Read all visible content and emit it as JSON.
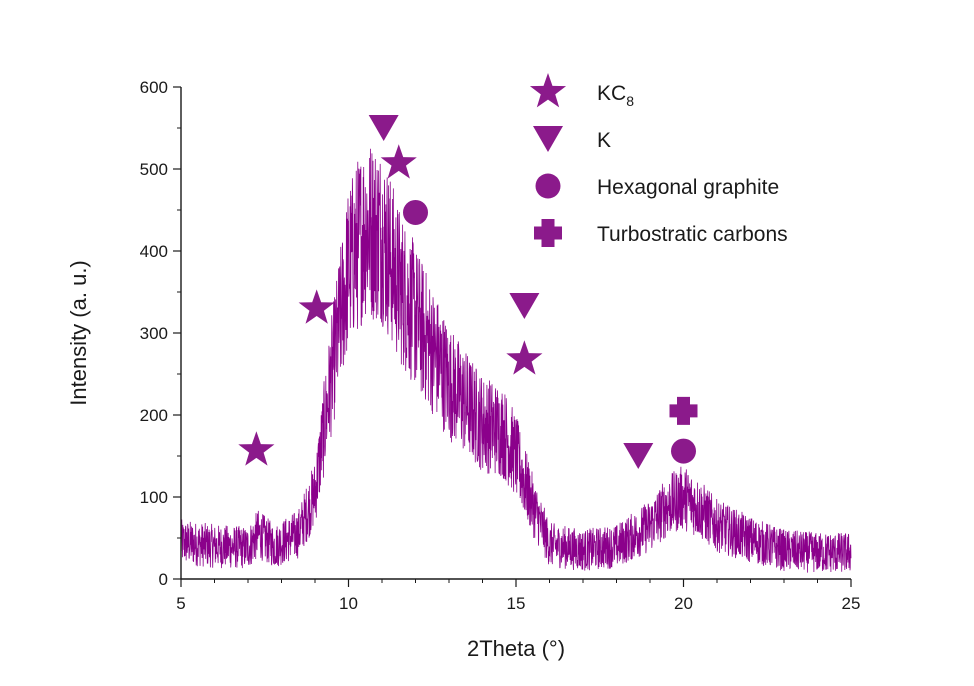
{
  "chart_data": {
    "type": "line",
    "xlabel": "2Theta (°)",
    "ylabel": "Intensity (a. u.)",
    "xlim": [
      5,
      25
    ],
    "ylim": [
      0,
      600
    ],
    "x_ticks": [
      "5",
      "10",
      "15",
      "20",
      "25"
    ],
    "y_ticks": [
      "0",
      "100",
      "200",
      "300",
      "400",
      "500",
      "600"
    ],
    "x_minor_step": 1,
    "y_minor_step": 50,
    "grid": false,
    "legend_position": "top-right",
    "line_color": "#8B008B",
    "marker_color": "#8B1A8B",
    "series": [
      {
        "profile": [
          {
            "x": 5.0,
            "y": 45
          },
          {
            "x": 6.0,
            "y": 40
          },
          {
            "x": 7.0,
            "y": 38
          },
          {
            "x": 7.3,
            "y": 55
          },
          {
            "x": 7.8,
            "y": 40
          },
          {
            "x": 8.5,
            "y": 55
          },
          {
            "x": 9.0,
            "y": 105
          },
          {
            "x": 9.5,
            "y": 250
          },
          {
            "x": 10.0,
            "y": 380
          },
          {
            "x": 10.5,
            "y": 430
          },
          {
            "x": 11.0,
            "y": 420
          },
          {
            "x": 11.5,
            "y": 360
          },
          {
            "x": 12.0,
            "y": 320
          },
          {
            "x": 13.0,
            "y": 240
          },
          {
            "x": 14.0,
            "y": 190
          },
          {
            "x": 14.6,
            "y": 180
          },
          {
            "x": 15.0,
            "y": 150
          },
          {
            "x": 15.5,
            "y": 90
          },
          {
            "x": 16.0,
            "y": 42
          },
          {
            "x": 17.0,
            "y": 35
          },
          {
            "x": 18.0,
            "y": 40
          },
          {
            "x": 19.0,
            "y": 65
          },
          {
            "x": 19.5,
            "y": 88
          },
          {
            "x": 20.0,
            "y": 100
          },
          {
            "x": 20.5,
            "y": 85
          },
          {
            "x": 21.0,
            "y": 65
          },
          {
            "x": 22.0,
            "y": 48
          },
          {
            "x": 23.0,
            "y": 35
          },
          {
            "x": 24.0,
            "y": 32
          },
          {
            "x": 25.0,
            "y": 32
          }
        ]
      }
    ],
    "annotations": [
      {
        "symbol": "star",
        "x": 7.25,
        "y": 157
      },
      {
        "symbol": "star",
        "x": 9.05,
        "y": 330
      },
      {
        "symbol": "triangle-down",
        "x": 11.05,
        "y": 550
      },
      {
        "symbol": "star",
        "x": 11.5,
        "y": 507
      },
      {
        "symbol": "circle",
        "x": 12.0,
        "y": 447
      },
      {
        "symbol": "triangle-down",
        "x": 15.25,
        "y": 333
      },
      {
        "symbol": "star",
        "x": 15.25,
        "y": 268
      },
      {
        "symbol": "triangle-down",
        "x": 18.65,
        "y": 150
      },
      {
        "symbol": "plus",
        "x": 20.0,
        "y": 205
      },
      {
        "symbol": "circle",
        "x": 20.0,
        "y": 156
      }
    ],
    "legend": [
      {
        "symbol": "star",
        "label": "KC",
        "subscript": "8"
      },
      {
        "symbol": "triangle-down",
        "label": "K",
        "subscript": ""
      },
      {
        "symbol": "circle",
        "label": "Hexagonal graphite",
        "subscript": ""
      },
      {
        "symbol": "plus",
        "label": "Turbostratic carbons",
        "subscript": ""
      }
    ]
  }
}
